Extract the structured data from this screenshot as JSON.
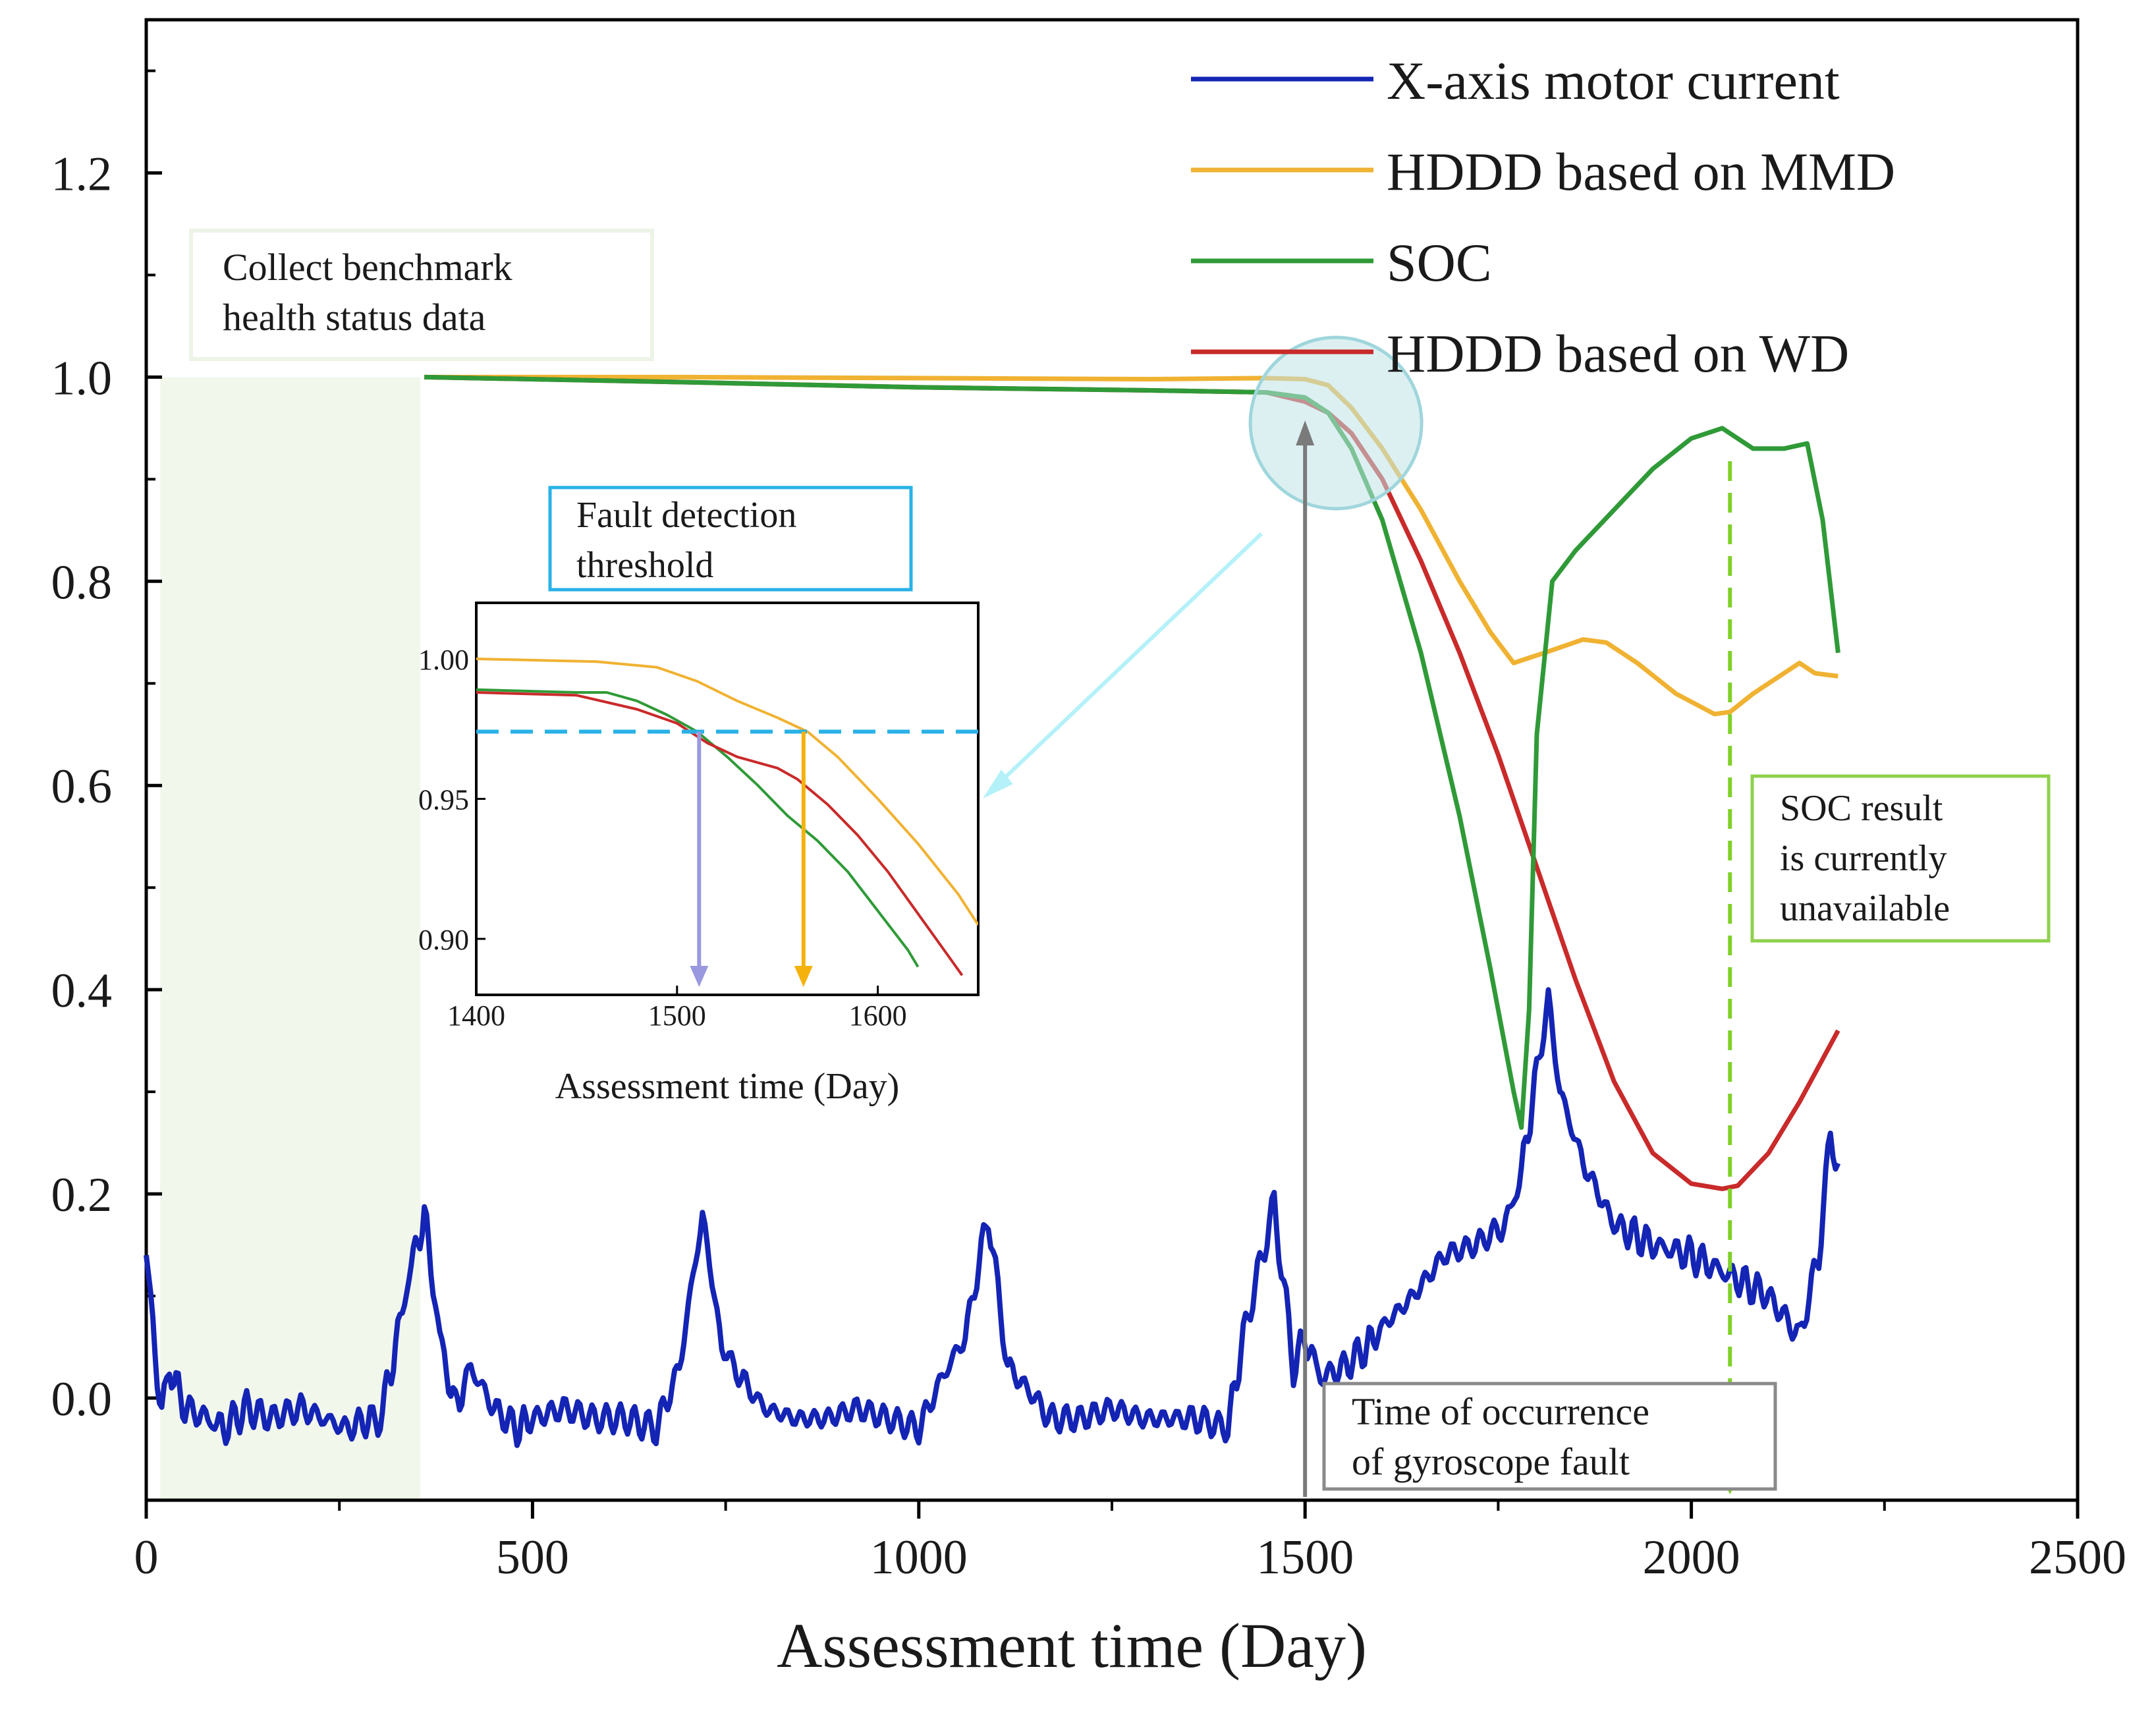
{
  "chart_data": {
    "type": "line",
    "xlabel": "Assessment time (Day)",
    "ylabel": "",
    "xlim": [
      0,
      2500
    ],
    "ylim": [
      -0.1,
      1.35
    ],
    "xticks": [
      0,
      500,
      1000,
      1500,
      2000,
      2500
    ],
    "xtick_labels": [
      "0",
      "500",
      "1000",
      "1500",
      "2000",
      "2500"
    ],
    "yticks": [
      0.0,
      0.2,
      0.4,
      0.6,
      0.8,
      1.0,
      1.2
    ],
    "ytick_labels": [
      "0.0",
      "0.2",
      "0.4",
      "0.6",
      "0.8",
      "1.0",
      "1.2"
    ],
    "legend_position": "top-right",
    "series": [
      {
        "name": "X-axis motor current",
        "color": "#1424b4",
        "x": [
          0,
          20,
          30,
          50,
          80,
          100,
          130,
          160,
          200,
          230,
          260,
          290,
          300,
          320,
          340,
          360,
          380,
          400,
          420,
          450,
          480,
          500,
          540,
          580,
          620,
          660,
          690,
          720,
          745,
          770,
          800,
          840,
          880,
          920,
          960,
          1000,
          1030,
          1060,
          1090,
          1115,
          1140,
          1170,
          1210,
          1250,
          1290,
          1330,
          1360,
          1400,
          1420,
          1460,
          1485,
          1500,
          1520,
          1550,
          1580,
          1600,
          1640,
          1680,
          1720,
          1760,
          1780,
          1800,
          1815,
          1830,
          1860,
          1900,
          1950,
          2000,
          2050,
          2100,
          2140,
          2165,
          2180,
          2190
        ],
        "values": [
          0.14,
          -0.02,
          0.03,
          -0.01,
          -0.02,
          -0.03,
          -0.01,
          -0.02,
          -0.01,
          -0.02,
          -0.03,
          -0.02,
          -0.03,
          0.04,
          0.12,
          0.18,
          0.06,
          -0.01,
          0.03,
          -0.01,
          -0.03,
          -0.02,
          -0.01,
          -0.02,
          -0.02,
          -0.03,
          0.03,
          0.18,
          0.05,
          0.02,
          -0.01,
          -0.02,
          -0.02,
          -0.01,
          -0.02,
          -0.03,
          0.02,
          0.06,
          0.18,
          0.03,
          0.01,
          -0.02,
          -0.02,
          -0.01,
          -0.02,
          -0.02,
          -0.02,
          -0.03,
          0.06,
          0.19,
          0.03,
          0.06,
          0.02,
          0.03,
          0.05,
          0.07,
          0.1,
          0.14,
          0.15,
          0.17,
          0.22,
          0.32,
          0.39,
          0.3,
          0.23,
          0.17,
          0.15,
          0.14,
          0.12,
          0.1,
          0.06,
          0.14,
          0.26,
          0.23
        ]
      },
      {
        "name": "HDDD based on MMD",
        "color": "#f0b232",
        "x": [
          360,
          700,
          1000,
          1300,
          1450,
          1500,
          1530,
          1560,
          1600,
          1650,
          1700,
          1740,
          1770,
          1790,
          1810,
          1860,
          1890,
          1930,
          1980,
          2030,
          2050,
          2080,
          2120,
          2140,
          2160,
          2180,
          2190
        ],
        "values": [
          1.0,
          1.0,
          0.999,
          0.998,
          0.999,
          0.998,
          0.992,
          0.97,
          0.93,
          0.87,
          0.8,
          0.75,
          0.72,
          0.725,
          0.73,
          0.743,
          0.74,
          0.72,
          0.69,
          0.67,
          0.672,
          0.69,
          0.71,
          0.72,
          0.71,
          0.708,
          0.707
        ]
      },
      {
        "name": "SOC",
        "color": "#2f9a37",
        "x": [
          360,
          700,
          1000,
          1300,
          1450,
          1500,
          1530,
          1560,
          1600,
          1650,
          1700,
          1740,
          1770,
          1780,
          1790,
          1800,
          1820,
          1850,
          1900,
          1950,
          2000,
          2040,
          2080,
          2120,
          2150,
          2170,
          2190
        ],
        "values": [
          1.0,
          0.995,
          0.99,
          0.987,
          0.985,
          0.98,
          0.965,
          0.93,
          0.86,
          0.73,
          0.57,
          0.42,
          0.3,
          0.265,
          0.38,
          0.65,
          0.8,
          0.83,
          0.87,
          0.91,
          0.94,
          0.95,
          0.93,
          0.93,
          0.935,
          0.86,
          0.73
        ]
      },
      {
        "name": "HDDD based on WD",
        "color": "#c92a2a",
        "x": [
          360,
          700,
          1000,
          1300,
          1450,
          1500,
          1530,
          1560,
          1600,
          1650,
          1700,
          1750,
          1800,
          1850,
          1900,
          1950,
          2000,
          2040,
          2060,
          2100,
          2140,
          2190
        ],
        "values": [
          1.0,
          0.995,
          0.99,
          0.987,
          0.985,
          0.976,
          0.965,
          0.945,
          0.9,
          0.82,
          0.73,
          0.63,
          0.52,
          0.41,
          0.31,
          0.24,
          0.21,
          0.205,
          0.208,
          0.24,
          0.29,
          0.36
        ]
      }
    ],
    "annotations": [
      {
        "text": "Collect benchmark health status data",
        "x_range": [
          18,
          355
        ]
      },
      {
        "text": "Fault detection threshold"
      },
      {
        "text": "Time of occurrence of gyroscope fault",
        "x": 1500
      },
      {
        "text": "SOC result is currently unavailable",
        "x": 2050
      }
    ],
    "inset": {
      "xlabel": "Assessment time (Day)",
      "xlim": [
        1400,
        1650
      ],
      "ylim": [
        0.88,
        1.02
      ],
      "xticks": [
        1400,
        1500,
        1600
      ],
      "xtick_labels": [
        "1400",
        "1500",
        "1600"
      ],
      "yticks": [
        0.9,
        0.95,
        1.0
      ],
      "ytick_labels": [
        "0.90",
        "0.95",
        "1.00"
      ],
      "threshold": 0.974,
      "markers": [
        {
          "x": 1511,
          "color": "#9a98df"
        },
        {
          "x": 1563,
          "color": "#f5b20c"
        }
      ],
      "series": [
        {
          "name": "HDDD based on MMD",
          "color": "#f0b232",
          "x": [
            1400,
            1460,
            1490,
            1510,
            1530,
            1550,
            1565,
            1580,
            1600,
            1620,
            1640,
            1650
          ],
          "values": [
            1.0,
            0.999,
            0.997,
            0.992,
            0.985,
            0.979,
            0.974,
            0.965,
            0.95,
            0.934,
            0.916,
            0.905
          ]
        },
        {
          "name": "SOC",
          "color": "#2f9a37",
          "x": [
            1400,
            1450,
            1465,
            1480,
            1495,
            1510,
            1525,
            1540,
            1555,
            1570,
            1585,
            1600,
            1615,
            1620
          ],
          "values": [
            0.989,
            0.988,
            0.988,
            0.985,
            0.98,
            0.974,
            0.965,
            0.955,
            0.944,
            0.935,
            0.924,
            0.91,
            0.896,
            0.89
          ]
        },
        {
          "name": "HDDD based on WD",
          "color": "#c92a2a",
          "x": [
            1400,
            1450,
            1480,
            1500,
            1515,
            1530,
            1550,
            1560,
            1575,
            1590,
            1605,
            1620,
            1635,
            1642
          ],
          "values": [
            0.988,
            0.987,
            0.982,
            0.977,
            0.97,
            0.965,
            0.961,
            0.957,
            0.948,
            0.937,
            0.924,
            0.909,
            0.894,
            0.887
          ]
        }
      ]
    }
  }
}
